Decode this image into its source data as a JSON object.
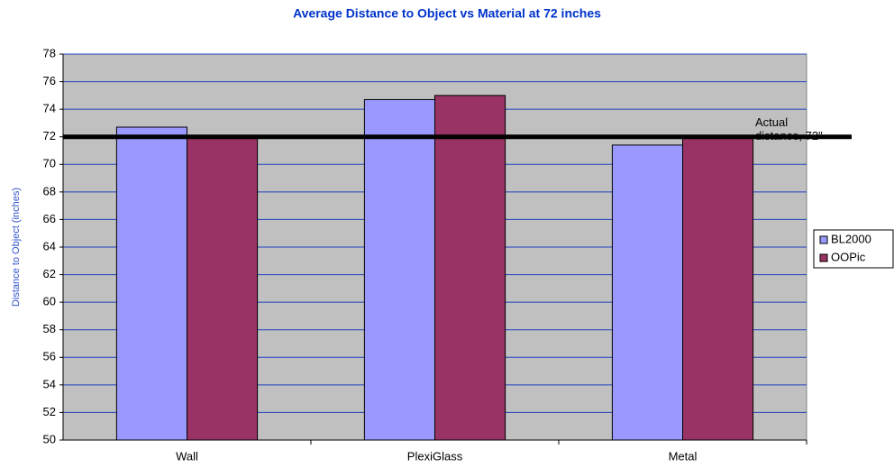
{
  "chart_data": {
    "type": "bar",
    "title": "Average Distance to Object vs Material at 72 inches",
    "y_label": "Distance to Object (inches)",
    "categories": [
      "Wall",
      "PlexiGlass",
      "Metal"
    ],
    "series": [
      {
        "name": "BL2000",
        "color": "#9999ff",
        "values": [
          72.7,
          74.7,
          71.4
        ]
      },
      {
        "name": "OOPic",
        "color": "#993366",
        "values": [
          72.0,
          75.0,
          72.0
        ]
      }
    ],
    "ylim": [
      50,
      78
    ],
    "yticks": [
      50,
      52,
      54,
      56,
      58,
      60,
      62,
      64,
      66,
      68,
      70,
      72,
      74,
      76,
      78
    ],
    "grid": true,
    "reference_line": 72,
    "annotation": [
      "Actual",
      "distance, 72\""
    ],
    "legend": "right"
  }
}
